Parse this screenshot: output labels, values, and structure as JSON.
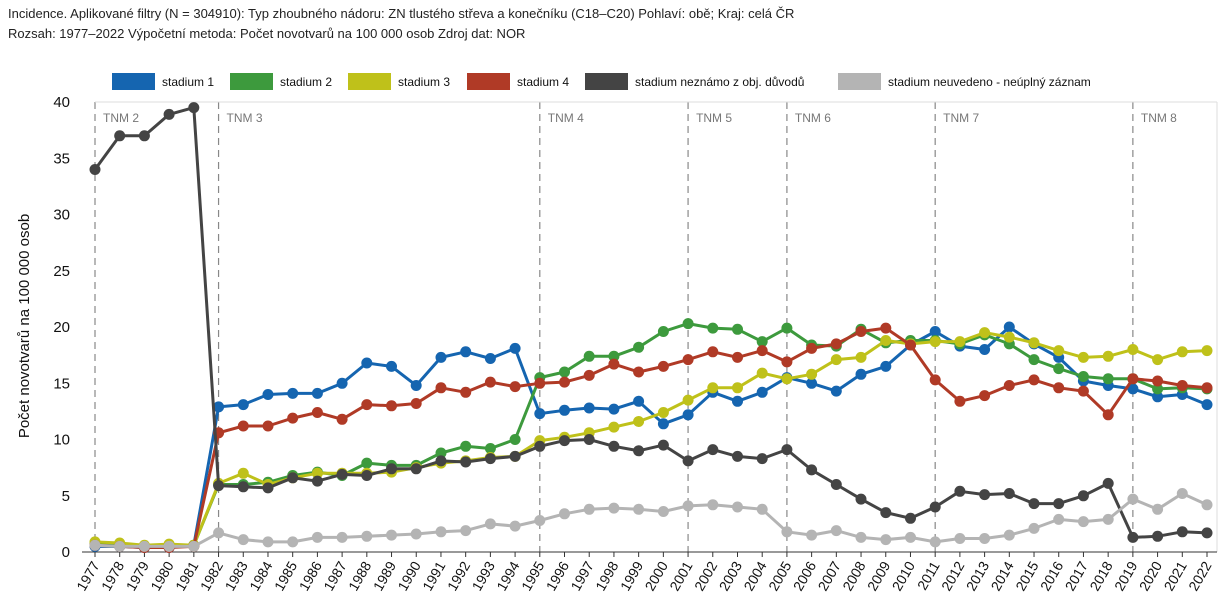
{
  "header": {
    "line1": "Incidence. Aplikované filtry (N = 304910): Typ zhoubného nádoru: ZN tlustého střeva a konečníku (C18–C20) Pohlaví: obě; Kraj: celá ČR",
    "line2": "Rozsah: 1977–2022 Výpočetní metoda: Počet novotvarů na 100 000 osob Zdroj dat: NOR"
  },
  "chart_data": {
    "type": "line",
    "title": "",
    "xlabel": "",
    "ylabel": "Počet novotvarů na 100 000 osob",
    "ylim": [
      0,
      40
    ],
    "yticks": [
      0,
      5,
      10,
      15,
      20,
      25,
      30,
      35,
      40
    ],
    "grid": false,
    "legend_position": "top",
    "categories": [
      "1977",
      "1978",
      "1979",
      "1980",
      "1981",
      "1982",
      "1983",
      "1984",
      "1985",
      "1986",
      "1987",
      "1988",
      "1989",
      "1990",
      "1991",
      "1992",
      "1993",
      "1994",
      "1995",
      "1996",
      "1997",
      "1998",
      "1999",
      "2000",
      "2001",
      "2002",
      "2003",
      "2004",
      "2005",
      "2006",
      "2007",
      "2008",
      "2009",
      "2010",
      "2011",
      "2012",
      "2013",
      "2014",
      "2015",
      "2016",
      "2017",
      "2018",
      "2019",
      "2020",
      "2021",
      "2022"
    ],
    "series": [
      {
        "name": "stadium 1",
        "color": "#1565b0",
        "values": [
          0.5,
          0.5,
          0.4,
          0.4,
          0.6,
          12.9,
          13.1,
          14.0,
          14.1,
          14.1,
          15.0,
          16.8,
          16.5,
          14.8,
          17.3,
          17.8,
          17.2,
          18.1,
          12.3,
          12.6,
          12.8,
          12.7,
          13.4,
          11.4,
          12.2,
          14.2,
          13.4,
          14.2,
          15.5,
          15.0,
          14.3,
          15.8,
          16.5,
          18.4,
          19.6,
          18.3,
          18.0,
          20.0,
          18.5,
          17.3,
          15.2,
          14.8,
          14.5,
          13.8,
          14.0,
          13.1
        ]
      },
      {
        "name": "stadium 2",
        "color": "#3d9a3d",
        "values": [
          0.7,
          0.6,
          0.5,
          0.5,
          0.6,
          6.0,
          6.0,
          6.2,
          6.8,
          7.1,
          6.8,
          7.9,
          7.7,
          7.7,
          8.8,
          9.4,
          9.2,
          10.0,
          15.5,
          16.0,
          17.4,
          17.4,
          18.2,
          19.6,
          20.3,
          19.9,
          19.8,
          18.7,
          19.9,
          18.4,
          18.3,
          19.8,
          18.6,
          18.8,
          18.8,
          18.5,
          19.3,
          18.5,
          17.1,
          16.3,
          15.6,
          15.4,
          15.4,
          14.5,
          14.6,
          14.5
        ]
      },
      {
        "name": "stadium 3",
        "color": "#bfc11a",
        "values": [
          0.9,
          0.8,
          0.6,
          0.7,
          0.6,
          6.1,
          7.0,
          6.0,
          6.6,
          7.0,
          7.0,
          7.0,
          7.1,
          7.5,
          7.9,
          8.1,
          8.4,
          8.5,
          9.9,
          10.2,
          10.6,
          11.1,
          11.6,
          12.4,
          13.5,
          14.6,
          14.6,
          15.9,
          15.4,
          15.8,
          17.1,
          17.3,
          18.8,
          18.5,
          18.7,
          18.7,
          19.5,
          19.1,
          18.6,
          17.9,
          17.3,
          17.4,
          18.0,
          17.1,
          17.8,
          17.9
        ]
      },
      {
        "name": "stadium 4",
        "color": "#b03a26",
        "values": [
          0.6,
          0.5,
          0.4,
          0.4,
          0.5,
          10.6,
          11.2,
          11.2,
          11.9,
          12.4,
          11.8,
          13.1,
          13.0,
          13.2,
          14.6,
          14.2,
          15.1,
          14.7,
          15.0,
          15.1,
          15.7,
          16.7,
          16.0,
          16.5,
          17.1,
          17.8,
          17.3,
          17.9,
          16.9,
          18.1,
          18.5,
          19.6,
          19.9,
          18.4,
          15.3,
          13.4,
          13.9,
          14.8,
          15.3,
          14.6,
          14.3,
          12.2,
          15.4,
          15.2,
          14.8,
          14.6
        ]
      },
      {
        "name": "stadium neznámo z obj. důvodů",
        "color": "#444444",
        "values": [
          34.0,
          37.0,
          37.0,
          38.9,
          39.5,
          5.9,
          5.8,
          5.7,
          6.6,
          6.3,
          6.9,
          6.8,
          7.4,
          7.4,
          8.1,
          8.0,
          8.3,
          8.5,
          9.4,
          9.9,
          10.0,
          9.4,
          9.0,
          9.5,
          8.1,
          9.1,
          8.5,
          8.3,
          9.1,
          7.3,
          6.0,
          4.7,
          3.5,
          3.0,
          4.0,
          5.4,
          5.1,
          5.2,
          4.3,
          4.3,
          5.0,
          6.1,
          1.3,
          1.4,
          1.8,
          1.7
        ]
      },
      {
        "name": "stadium neuvedeno - neúplný záznam",
        "color": "#b4b4b4",
        "values": [
          0.6,
          0.5,
          0.5,
          0.5,
          0.5,
          1.7,
          1.1,
          0.9,
          0.9,
          1.3,
          1.3,
          1.4,
          1.5,
          1.6,
          1.8,
          1.9,
          2.5,
          2.3,
          2.8,
          3.4,
          3.8,
          3.9,
          3.8,
          3.6,
          4.1,
          4.2,
          4.0,
          3.8,
          1.8,
          1.5,
          1.9,
          1.3,
          1.1,
          1.3,
          0.9,
          1.2,
          1.2,
          1.5,
          2.1,
          2.9,
          2.7,
          2.9,
          4.7,
          3.8,
          5.2,
          4.2
        ]
      }
    ],
    "tnm_markers": [
      {
        "label": "TNM 2",
        "year": "1977"
      },
      {
        "label": "TNM 3",
        "year": "1982"
      },
      {
        "label": "TNM 4",
        "year": "1995"
      },
      {
        "label": "TNM 5",
        "year": "2001"
      },
      {
        "label": "TNM 6",
        "year": "2005"
      },
      {
        "label": "TNM 7",
        "year": "2011"
      },
      {
        "label": "TNM 8",
        "year": "2019"
      }
    ]
  }
}
